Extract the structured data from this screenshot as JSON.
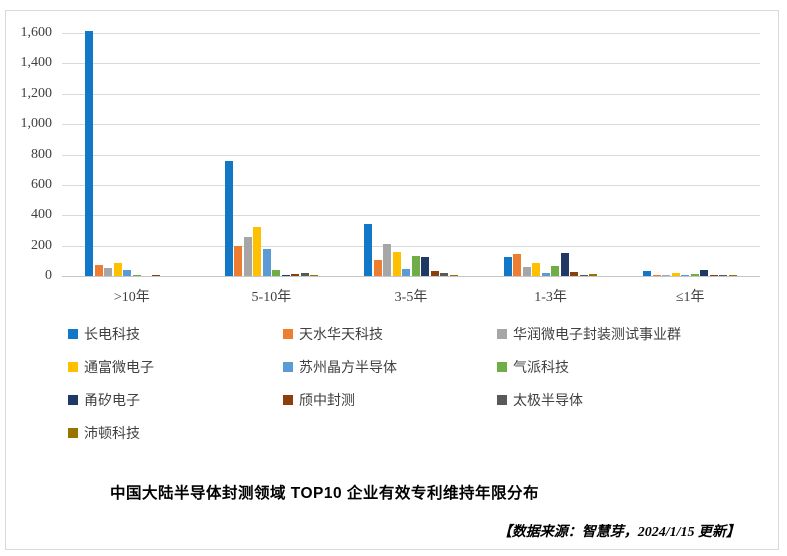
{
  "chart_data": {
    "type": "bar",
    "title": "中国大陆半导体封测领域 TOP10 企业有效专利维持年限分布",
    "source_note": "【数据来源：智慧芽，2024/1/15 更新】",
    "categories": [
      ">10年",
      "5-10年",
      "3-5年",
      "1-3年",
      "≤1年"
    ],
    "series": [
      {
        "name": "长电科技",
        "color": "#1277C6",
        "values": [
          1610,
          760,
          340,
          125,
          30
        ]
      },
      {
        "name": "天水华天科技",
        "color": "#ED7D31",
        "values": [
          75,
          200,
          105,
          145,
          6
        ]
      },
      {
        "name": "华润微电子封装测试事业群",
        "color": "#A6A6A6",
        "values": [
          55,
          260,
          210,
          62,
          6
        ]
      },
      {
        "name": "通富微电子",
        "color": "#FFC000",
        "values": [
          85,
          325,
          160,
          88,
          20
        ]
      },
      {
        "name": "苏州晶方半导体",
        "color": "#5B9BD5",
        "values": [
          42,
          180,
          48,
          22,
          4
        ]
      },
      {
        "name": "气派科技",
        "color": "#70AD47",
        "values": [
          9,
          40,
          135,
          66,
          11
        ]
      },
      {
        "name": "甬矽电子",
        "color": "#1F3864",
        "values": [
          0,
          8,
          126,
          150,
          40
        ]
      },
      {
        "name": "颀中封测",
        "color": "#8A3F0D",
        "values": [
          9,
          13,
          36,
          28,
          6
        ]
      },
      {
        "name": "太极半导体",
        "color": "#595959",
        "values": [
          0,
          18,
          19,
          6,
          5
        ]
      },
      {
        "name": "沛顿科技",
        "color": "#997300",
        "values": [
          0,
          9,
          7,
          12,
          9
        ]
      }
    ],
    "ylim": [
      0,
      1600
    ],
    "ytick_step": 200,
    "ytick_labels": [
      "0",
      "200",
      "400",
      "600",
      "800",
      "1,000",
      "1,200",
      "1,400",
      "1,600"
    ],
    "grid": true,
    "legend_position": "below-plot",
    "legend_columns": 3
  },
  "colors": {
    "gridline": "#D9D9D9",
    "axis_baseline": "#C6C6C6",
    "frame_border": "#D9D9D9",
    "axis_text": "#404040",
    "legend_text": "#404040"
  }
}
